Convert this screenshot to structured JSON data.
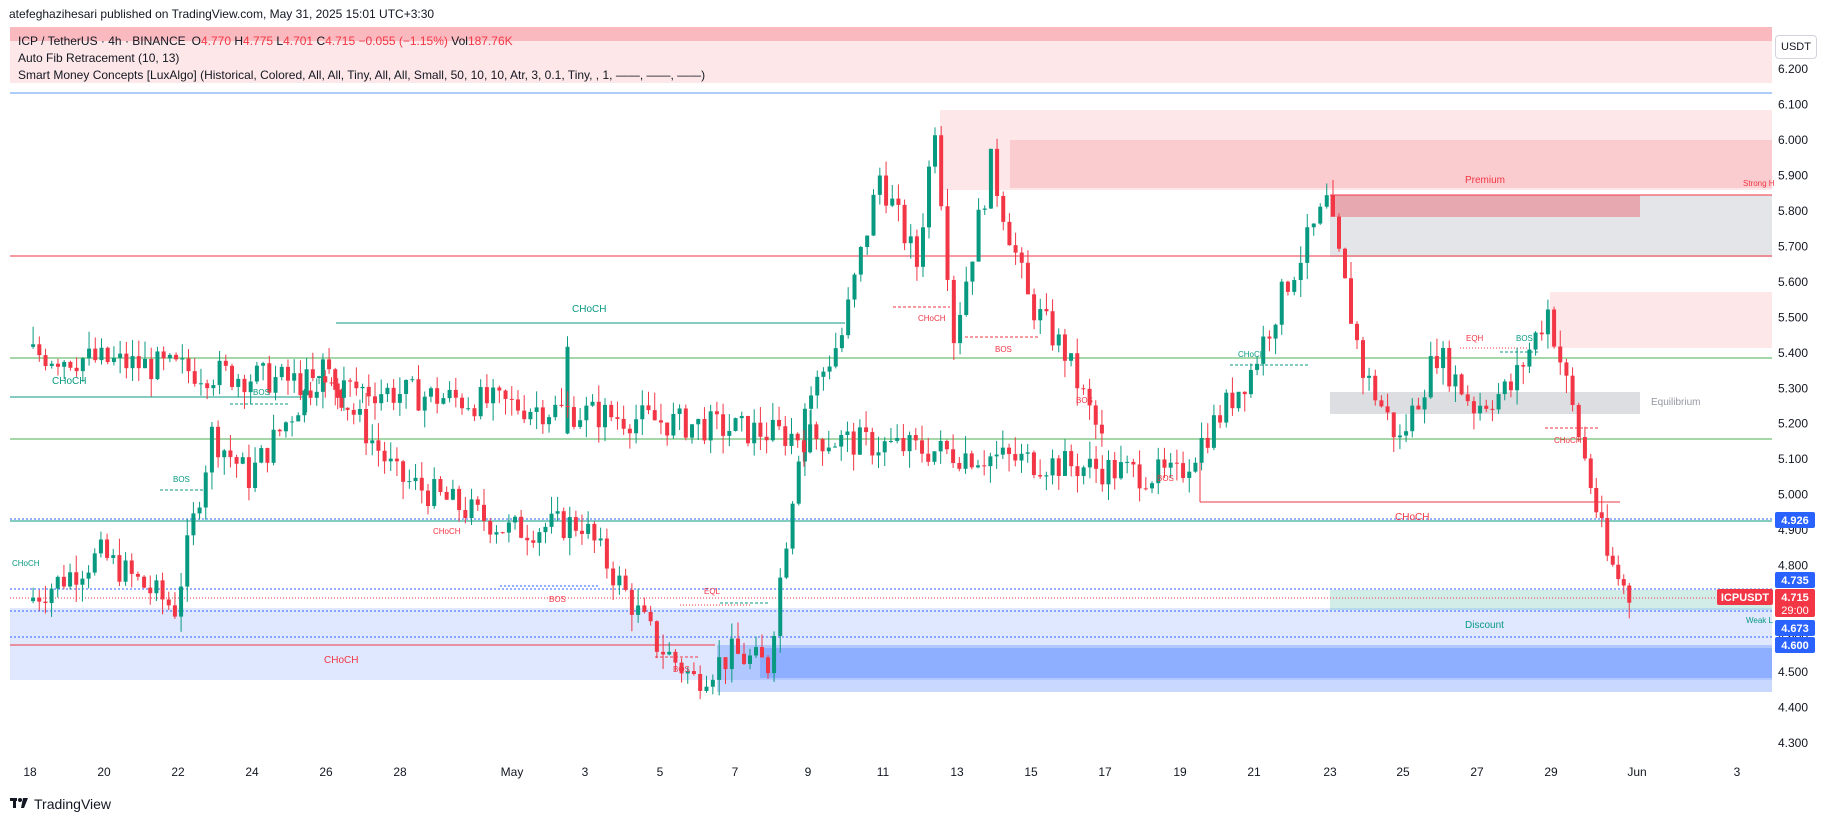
{
  "publisher": "atefeghazihesari published on TradingView.com, May 31, 2025 15:01 UTC+3:30",
  "legend": {
    "symbol": "ICP / TetherUS · 4h · BINANCE",
    "o_label": "O",
    "o": "4.770",
    "h_label": "H",
    "h": "4.775",
    "l_label": "L",
    "l": "4.701",
    "c_label": "C",
    "c": "4.715",
    "change": "−0.055 (−1.15%)",
    "vol_label": "Vol",
    "vol": "187.76K",
    "indicator1": "Auto Fib Retracement (10, 13)",
    "indicator2": "Smart Money Concepts [LuxAlgo] (Historical, Colored, All, All, Tiny, All, All, Small, 50, 10, 10, Atr, 3, 0.1, Tiny, , 1, ——, ——, ——)"
  },
  "currency": "USDT",
  "brand": "TradingView",
  "price_badges": {
    "level_4926": "4.926",
    "level_4735": "4.735",
    "symbol": "ICPUSDT",
    "last": "4.715",
    "countdown": "29:00",
    "level_4673": "4.673",
    "level_4600": "4.600"
  },
  "annotations": {
    "choch_1": "CHoCH",
    "choch_2": "CHoCH",
    "choch_3": "CHoCH",
    "choch_4": "CHoCH",
    "choch_small": "CHoCH",
    "bos": "BOS",
    "eqh": "EQH",
    "eql": "EQL",
    "premium": "Premium",
    "equilibrium": "Equilibrium",
    "discount": "Discount",
    "strong_high": "Strong H",
    "weak_low": "Weak L"
  },
  "colors": {
    "bull": "#089981",
    "bear": "#f23645",
    "accent_blue": "#2962ff",
    "premium_zone": "#f23645",
    "discount_zone": "#2157f3"
  },
  "chart_data": {
    "type": "candlestick",
    "symbol": "ICP / TetherUS",
    "interval": "4h",
    "exchange": "BINANCE",
    "y_axis": {
      "ticks": [
        "6.200",
        "6.100",
        "6.000",
        "5.900",
        "5.800",
        "5.700",
        "5.600",
        "5.500",
        "5.400",
        "5.300",
        "5.200",
        "5.100",
        "5.000",
        "4.900",
        "4.800",
        "4.700",
        "4.600",
        "4.500",
        "4.400",
        "4.300"
      ],
      "range": [
        4.25,
        6.29
      ]
    },
    "x_axis": {
      "ticks": [
        "18",
        "20",
        "22",
        "24",
        "26",
        "28",
        "May",
        "3",
        "5",
        "7",
        "9",
        "11",
        "13",
        "15",
        "17",
        "19",
        "21",
        "23",
        "25",
        "27",
        "29",
        "Jun",
        "3"
      ]
    },
    "series_close_path": [
      [
        "18",
        4.7
      ],
      [
        "20",
        4.83
      ],
      [
        "22",
        4.68
      ],
      [
        "23",
        5.17
      ],
      [
        "24",
        5.05
      ],
      [
        "26",
        5.36
      ],
      [
        "28",
        5.05
      ],
      [
        "May",
        4.9
      ],
      [
        "3",
        4.92
      ],
      [
        "5",
        4.58
      ],
      [
        "6",
        4.48
      ],
      [
        "7",
        4.55
      ],
      [
        "8",
        4.52
      ],
      [
        "9",
        5.25
      ],
      [
        "10",
        5.45
      ],
      [
        "11",
        5.9
      ],
      [
        "12",
        5.65
      ],
      [
        "12.5",
        6.05
      ],
      [
        "13",
        5.45
      ],
      [
        "14",
        5.93
      ],
      [
        "15",
        5.55
      ],
      [
        "16",
        5.4
      ],
      [
        "17",
        5.15
      ],
      [
        "18",
        5.4
      ],
      [
        "19",
        5.05
      ],
      [
        "21",
        5.35
      ],
      [
        "22",
        5.6
      ],
      [
        "23",
        5.82
      ],
      [
        "24",
        5.35
      ],
      [
        "25",
        5.15
      ],
      [
        "26",
        5.4
      ],
      [
        "27",
        5.25
      ],
      [
        "28",
        5.3
      ],
      [
        "29",
        5.52
      ],
      [
        "30",
        5.1
      ],
      [
        "30.5",
        4.82
      ],
      [
        "31",
        4.715
      ]
    ],
    "last_close": 4.715,
    "levels": [
      4.926,
      4.735,
      4.673,
      4.6
    ]
  }
}
